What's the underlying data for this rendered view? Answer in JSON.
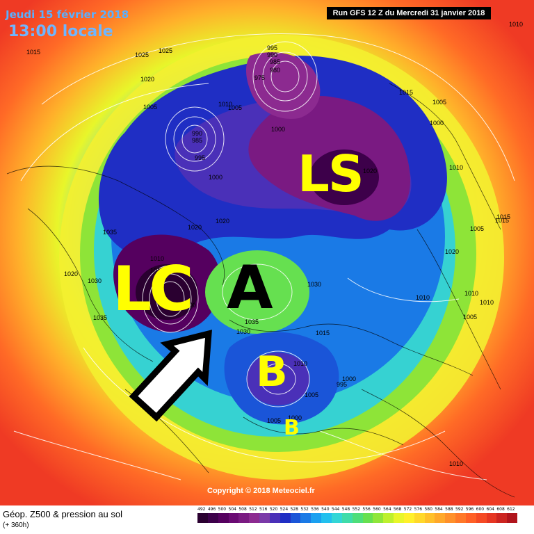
{
  "header": {
    "date": "Jeudi 15 février 2018",
    "time": "13:00 locale",
    "run": "Run GFS 12 Z du Mercredi 31 janvier 2018"
  },
  "annotations": {
    "ls": "LS",
    "lc": "LC",
    "a": "A",
    "b_large": "B",
    "b_small": "B"
  },
  "pressure_labels": [
    "1010",
    "1015",
    "1025",
    "1025",
    "1020",
    "1005",
    "1010",
    "1005",
    "990",
    "985",
    "995",
    "995",
    "990",
    "985",
    "980",
    "975",
    "1000",
    "1015",
    "1005",
    "1000",
    "1010",
    "1020",
    "1015",
    "1005",
    "1000",
    "1020",
    "1035",
    "1020",
    "1010",
    "1015",
    "1020",
    "1030",
    "1030",
    "1035",
    "1030",
    "1035",
    "1000",
    "1010",
    "995",
    "1000",
    "1005",
    "1005",
    "1000",
    "1015",
    "1010",
    "1020",
    "1010",
    "1015",
    "1005",
    "1010",
    "1010"
  ],
  "copyright": "Copyright © 2018 Meteociel.fr",
  "footer": {
    "title": "Géop. Z500 & pression au sol",
    "subtitle": "(+ 360h)",
    "scale_values": [
      "492",
      "496",
      "500",
      "504",
      "508",
      "512",
      "516",
      "520",
      "524",
      "528",
      "532",
      "536",
      "540",
      "544",
      "548",
      "552",
      "556",
      "560",
      "564",
      "568",
      "572",
      "576",
      "580",
      "584",
      "588",
      "592",
      "596",
      "600",
      "604",
      "608",
      "612"
    ],
    "scale_colors": [
      "#2a0030",
      "#3d004a",
      "#55005f",
      "#6a0a73",
      "#7a1a82",
      "#8c2a90",
      "#7a3aa8",
      "#4a30b8",
      "#1f2ec4",
      "#1a55d8",
      "#1a7ae6",
      "#1aa0f0",
      "#22c0ee",
      "#33d6d6",
      "#3fdcaa",
      "#4ede7a",
      "#66e050",
      "#8fe63a",
      "#bdf02e",
      "#e8f62a",
      "#fff02a",
      "#ffd82a",
      "#ffc02a",
      "#ffa82a",
      "#ff902a",
      "#ff7828",
      "#ff6026",
      "#f54a24",
      "#e63622",
      "#cc2420",
      "#b0141c"
    ]
  }
}
